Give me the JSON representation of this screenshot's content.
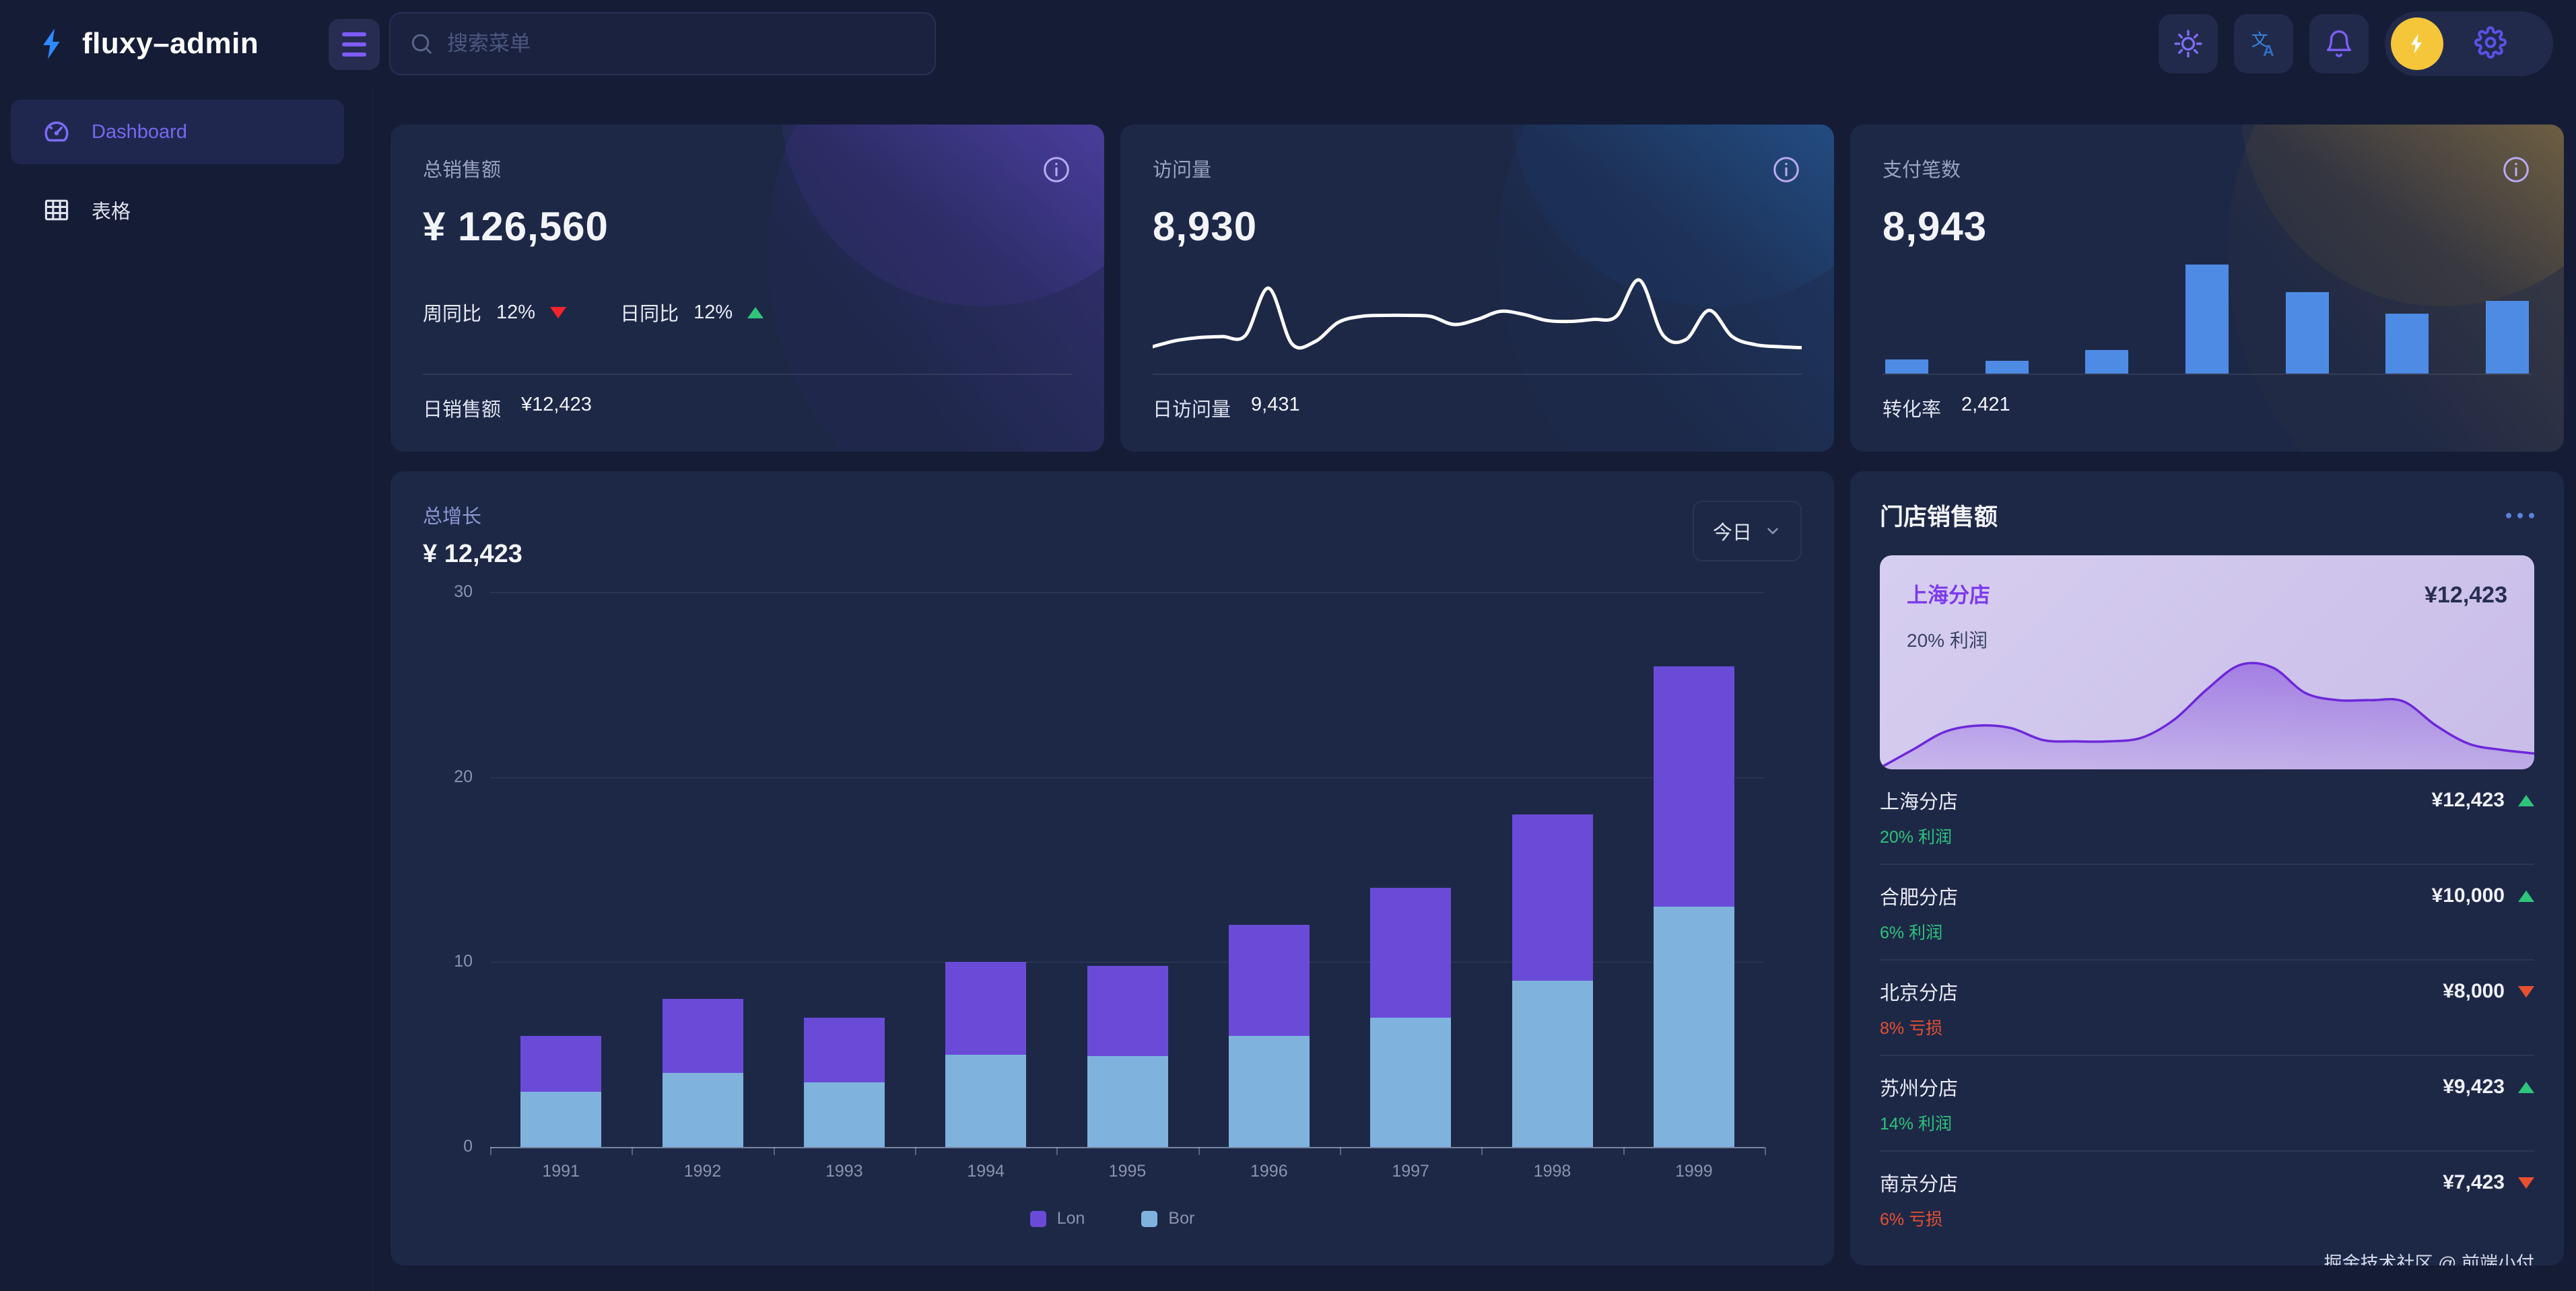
{
  "brand": {
    "logo_text": "fluxy–admin",
    "logo_icon": "lightning-bolt",
    "logo_color": "#2f88ff"
  },
  "header": {
    "menu_icon": "hamburger",
    "search": {
      "placeholder": "搜索菜单",
      "icon": "search"
    },
    "actions": [
      {
        "name": "theme-toggle",
        "icon": "sun"
      },
      {
        "name": "language",
        "icon": "translate"
      },
      {
        "name": "notifications",
        "icon": "bell"
      }
    ],
    "user": {
      "avatar_icon": "lightning-bolt",
      "avatar_bg": "#f6c63a",
      "settings_icon": "gear"
    }
  },
  "sidebar": {
    "items": [
      {
        "label": "Dashboard",
        "icon": "gauge",
        "active": true
      },
      {
        "label": "表格",
        "icon": "table",
        "active": false
      }
    ]
  },
  "stat_cards": [
    {
      "title": "总销售额",
      "value": "¥ 126,560",
      "metrics": [
        {
          "label": "周同比",
          "value": "12%",
          "trend": "down"
        },
        {
          "label": "日同比",
          "value": "12%",
          "trend": "up"
        }
      ],
      "footer_label": "日销售额",
      "footer_value": "¥12,423"
    },
    {
      "title": "访问量",
      "value": "8,930",
      "sparkline": {
        "color": "#ffffff",
        "ymax": 10,
        "values": [
          2,
          2.6,
          2.9,
          3,
          3.1,
          7.8,
          2.3,
          2.5,
          4.4,
          5,
          5.1,
          5.1,
          5,
          4.2,
          4.7,
          5.5,
          5.2,
          4.6,
          4.5,
          4.7,
          5,
          8.6,
          3.2,
          2.7,
          5.6,
          3,
          2.2,
          2,
          1.9
        ]
      },
      "footer_label": "日访问量",
      "footer_value": "9,431"
    },
    {
      "title": "支付笔数",
      "value": "8,943",
      "bars": {
        "color": "#4e8be4",
        "ymax": 6.6,
        "values": [
          0.8,
          0.7,
          1.3,
          6,
          4.5,
          3.3,
          4
        ]
      },
      "footer_label": "转化率",
      "footer_value": "2,421"
    }
  ],
  "growth": {
    "title": "总增长",
    "value": "¥ 12,423",
    "range_label": "今日",
    "chart_data": {
      "type": "bar-stacked",
      "categories": [
        "1991",
        "1992",
        "1993",
        "1994",
        "1995",
        "1996",
        "1997",
        "1998",
        "1999"
      ],
      "series": [
        {
          "name": "Lon",
          "color": "#6a4bd8",
          "values": [
            3,
            4,
            3.5,
            5,
            4.9,
            6,
            7,
            9,
            13
          ]
        },
        {
          "name": "Bor",
          "color": "#7fb3de",
          "values": [
            3,
            4,
            3.5,
            5,
            4.9,
            6,
            7,
            9,
            13
          ]
        }
      ],
      "stack_bottom": "Bor",
      "ylim": [
        0,
        30
      ],
      "yticks": [
        0,
        10,
        20,
        30
      ],
      "grid": true,
      "legend_position": "bottom"
    }
  },
  "stores": {
    "title": "门店销售额",
    "menu_icon": "ellipsis",
    "featured": {
      "name": "上海分店",
      "value": "¥12,423",
      "note": "20% 利润",
      "area": {
        "color": "#6d28d9",
        "ymax": 10,
        "values": [
          0,
          1.5,
          3,
          3.5,
          3.3,
          2.3,
          2.2,
          2.2,
          2.5,
          4,
          6.5,
          8.5,
          8.3,
          6.2,
          5.6,
          5.6,
          5.5,
          3.5,
          2,
          1.5,
          1.2
        ]
      }
    },
    "list": [
      {
        "name": "上海分店",
        "value": "¥12,423",
        "trend": "up",
        "note": "20% 利润",
        "note_type": "profit"
      },
      {
        "name": "合肥分店",
        "value": "¥10,000",
        "trend": "up",
        "note": "6% 利润",
        "note_type": "profit"
      },
      {
        "name": "北京分店",
        "value": "¥8,000",
        "trend": "down",
        "note": "8% 亏损",
        "note_type": "loss"
      },
      {
        "name": "苏州分店",
        "value": "¥9,423",
        "trend": "up",
        "note": "14% 利润",
        "note_type": "profit"
      },
      {
        "name": "南京分店",
        "value": "¥7,423",
        "trend": "down",
        "note": "6% 亏损",
        "note_type": "loss"
      }
    ]
  },
  "footer": {
    "credit": "掘金技术社区 @ 前端小付"
  },
  "status_colors": {
    "up": "#2ec47c",
    "down": "#e8502f",
    "metric_down": "#f5232c"
  }
}
